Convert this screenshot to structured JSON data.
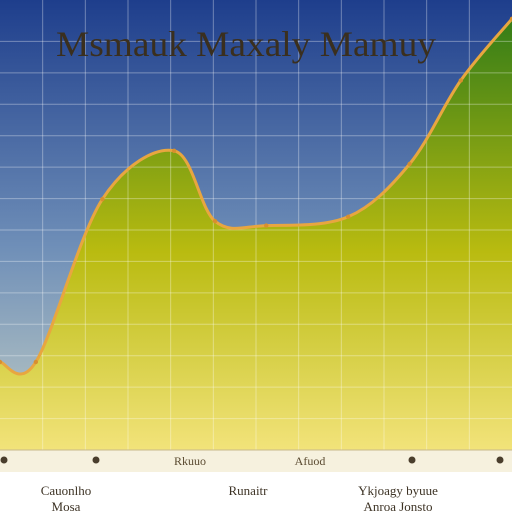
{
  "chart_data": {
    "type": "area",
    "title": "Msmauk Maxaly Mamuy",
    "xlabel": "",
    "ylabel": "",
    "grid": true,
    "legend": "none",
    "x": [
      0,
      0.07,
      0.2,
      0.34,
      0.42,
      0.52,
      0.68,
      0.8,
      0.9,
      1.0
    ],
    "series": [
      {
        "values": [
          0.2,
          0.2,
          0.57,
          0.68,
          0.52,
          0.51,
          0.53,
          0.65,
          0.84,
          0.98
        ]
      }
    ],
    "ylim": [
      0,
      1
    ],
    "xlim": [
      0,
      1
    ],
    "colors": {
      "sky_top": "#1e3e8c",
      "sky_mid": "#6f8fb8",
      "sky_bottom": "#c3cfc6",
      "fill_top": "#2f7a18",
      "fill_mid": "#b9bb10",
      "fill_bottom": "#f2e37a",
      "line": "#e8a640",
      "grid": "#ffffff"
    },
    "tick_labels": [
      "Rkuuo",
      "Afuod"
    ],
    "category_labels": [
      [
        "Cauonlho",
        "Mosa"
      ],
      [
        "Runaitr"
      ],
      [
        "Ykjoagy byuue",
        "Anroa Jonsto"
      ]
    ]
  }
}
